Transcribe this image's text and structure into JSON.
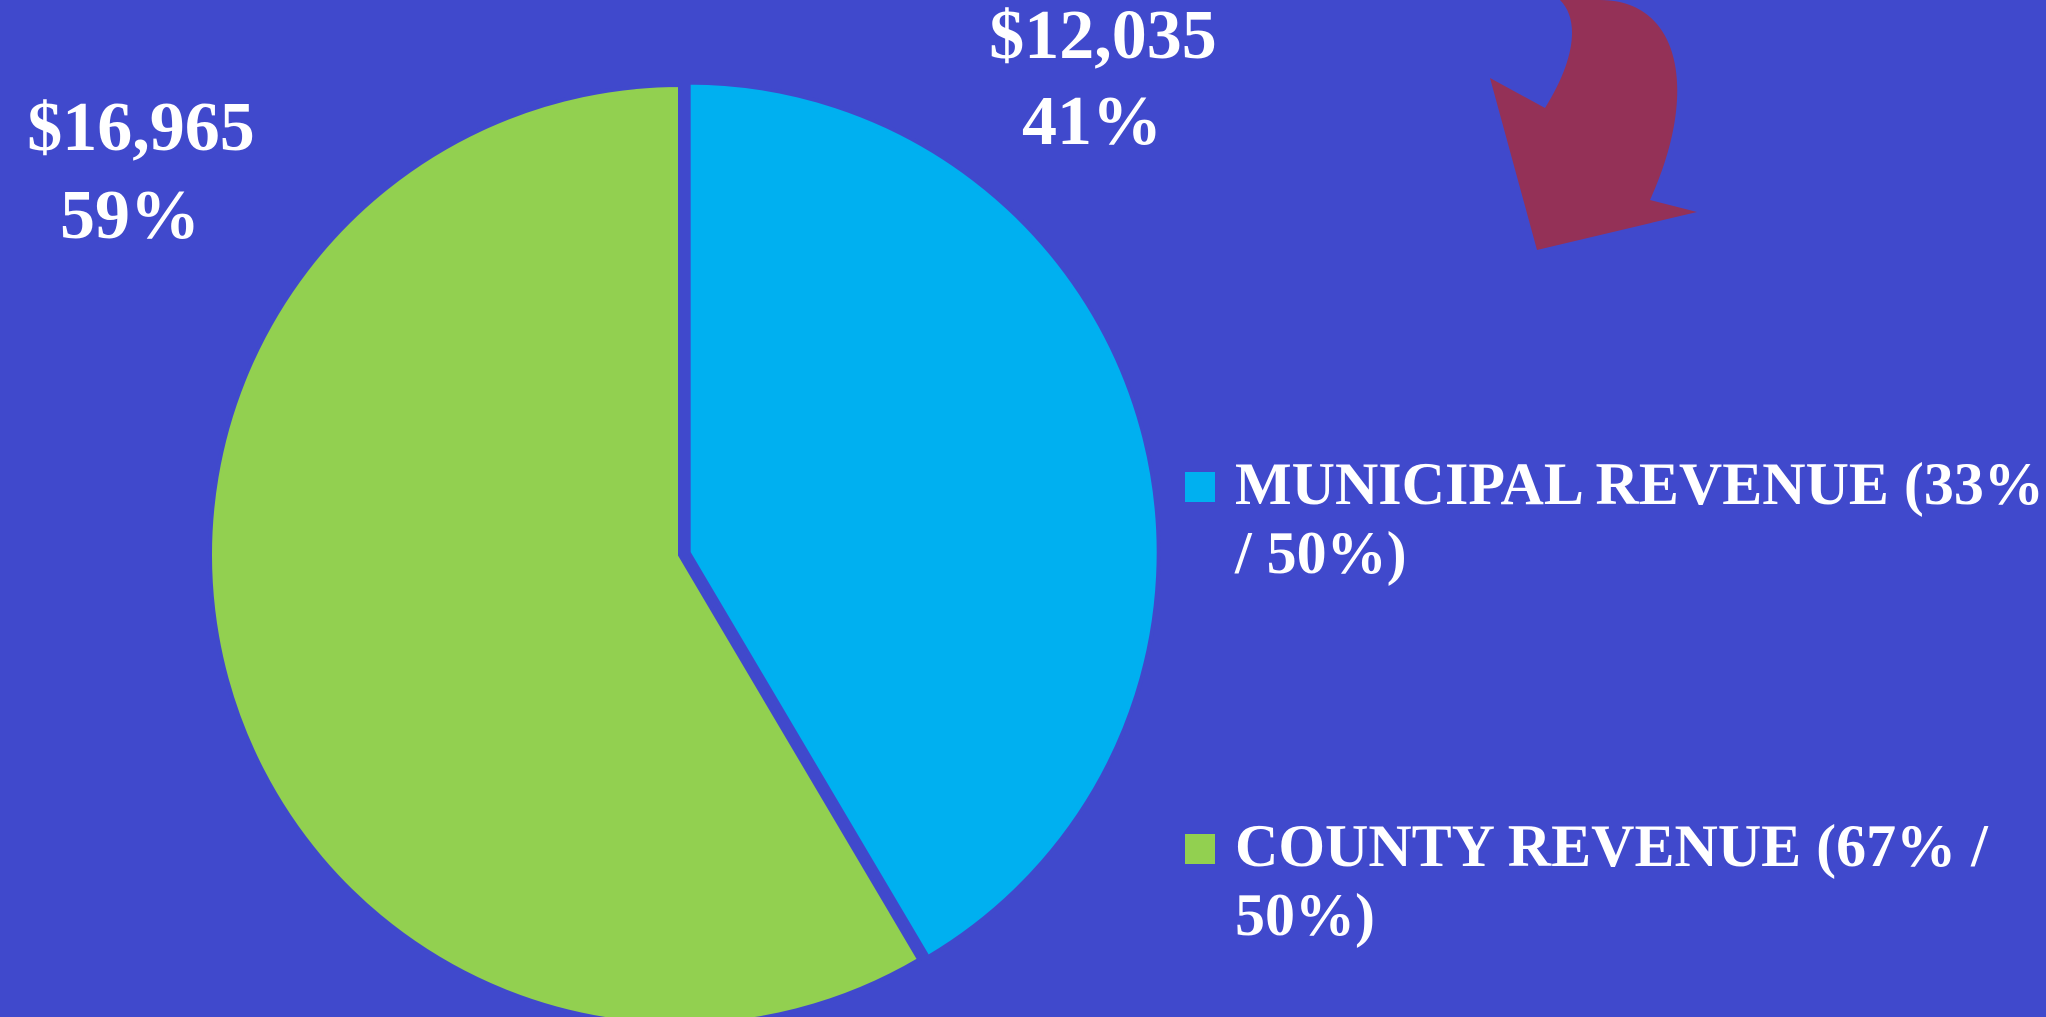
{
  "chart_data": {
    "type": "pie",
    "categories": [
      "MUNICIPAL REVENUE (33% / 50%)",
      "COUNTY REVENUE (67% / 50%)"
    ],
    "values": [
      12035,
      16965
    ],
    "value_labels": [
      "$12,035",
      "$16,965"
    ],
    "percent_labels": [
      "41%",
      "59%"
    ],
    "colors": [
      "#00b0f0",
      "#92d050"
    ],
    "legend": "right"
  }
}
